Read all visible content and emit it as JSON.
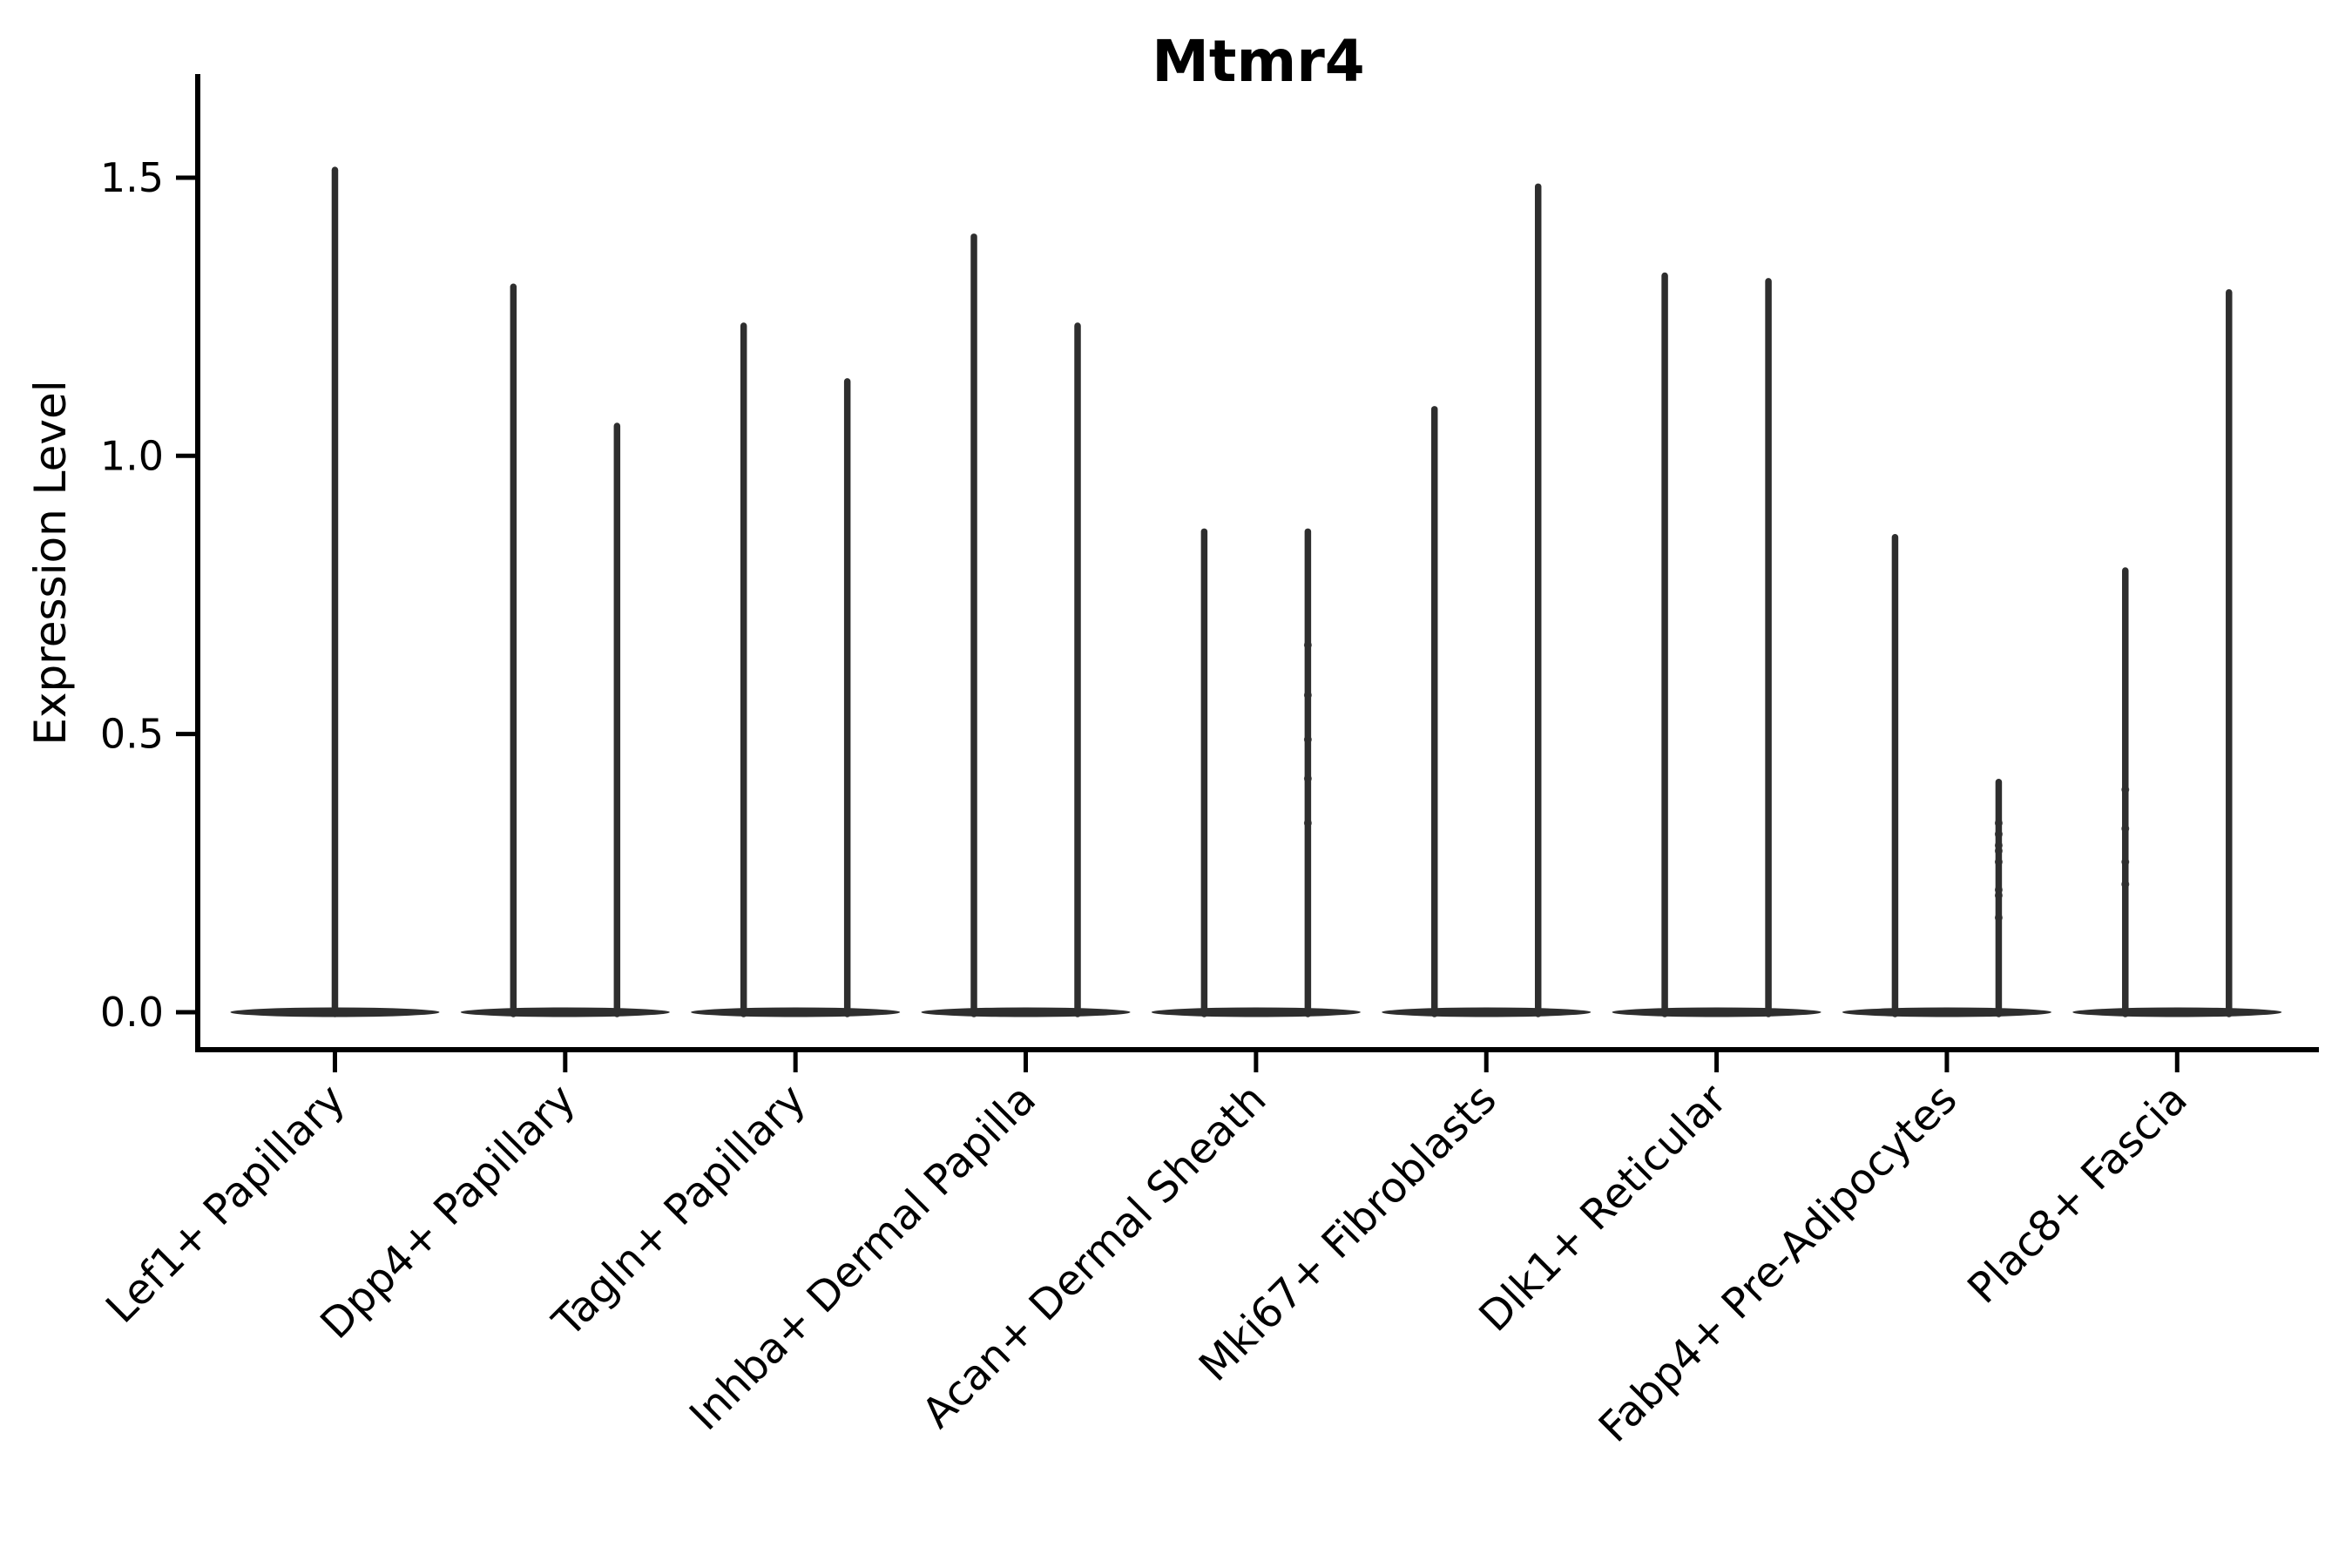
{
  "figure": {
    "background_color": "#ffffff",
    "axis_color": "#000000",
    "violin_color": "#2e2e2e"
  },
  "chart_data": {
    "type": "violin",
    "title": "Mtmr4",
    "xlabel": "",
    "ylabel": "Expression Level",
    "ylim": [
      -0.07,
      1.69
    ],
    "yticks": [
      0.0,
      0.5,
      1.0,
      1.5
    ],
    "ytick_labels": [
      "0.0",
      "0.5",
      "1.0",
      "1.5"
    ],
    "grid": false,
    "legend_position": "none",
    "x_tick_rotation_deg": 45,
    "description": "Single-cell expression violin plot; each violin is a thin spike rising from a wide flat base at 0 (most cells have zero expression). Most categories show two adjacent violins.",
    "categories": [
      {
        "label": "Lef1+ Papillary",
        "violin_maxima": [
          1.52
        ],
        "violin_minima": [
          0.0
        ],
        "jitter_points": [
          []
        ]
      },
      {
        "label": "Dpp4+ Papillary",
        "violin_maxima": [
          1.31,
          1.06
        ],
        "violin_minima": [
          0.0,
          0.0
        ],
        "jitter_points": [
          [],
          []
        ]
      },
      {
        "label": "Tagln+ Papillary",
        "violin_maxima": [
          1.24,
          1.14
        ],
        "violin_minima": [
          0.0,
          0.0
        ],
        "jitter_points": [
          [],
          []
        ]
      },
      {
        "label": "Inhba+ Dermal Papilla",
        "violin_maxima": [
          1.4,
          1.24
        ],
        "violin_minima": [
          0.0,
          0.0
        ],
        "jitter_points": [
          [],
          []
        ]
      },
      {
        "label": "Acan+ Dermal Sheath",
        "violin_maxima": [
          0.87,
          0.87
        ],
        "violin_minima": [
          0.0,
          0.0
        ],
        "jitter_points": [
          [],
          [
            0.66,
            0.57,
            0.49,
            0.42,
            0.34
          ]
        ]
      },
      {
        "label": "Mki67+ Fibroblasts",
        "violin_maxima": [
          1.09,
          1.49
        ],
        "violin_minima": [
          0.0,
          0.0
        ],
        "jitter_points": [
          [],
          []
        ]
      },
      {
        "label": "Dlk1+ Reticular",
        "violin_maxima": [
          1.33,
          1.32
        ],
        "violin_minima": [
          0.0,
          0.0
        ],
        "jitter_points": [
          [],
          []
        ]
      },
      {
        "label": "Fabp4+ Pre-Adipocytes",
        "violin_maxima": [
          0.86,
          0.42
        ],
        "violin_minima": [
          0.0,
          0.0
        ],
        "jitter_points": [
          [],
          [
            0.34,
            0.32,
            0.3,
            0.29,
            0.27,
            0.22,
            0.21,
            0.17
          ]
        ]
      },
      {
        "label": "Plac8+ Fascia",
        "violin_maxima": [
          0.8,
          1.3
        ],
        "violin_minima": [
          0.0,
          0.0
        ],
        "jitter_points": [
          [
            0.4,
            0.33,
            0.27,
            0.23
          ],
          []
        ]
      }
    ]
  }
}
